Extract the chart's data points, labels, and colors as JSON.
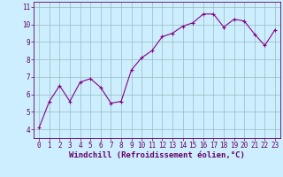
{
  "x": [
    0,
    1,
    2,
    3,
    4,
    5,
    6,
    7,
    8,
    9,
    10,
    11,
    12,
    13,
    14,
    15,
    16,
    17,
    18,
    19,
    20,
    21,
    22,
    23
  ],
  "y": [
    4.1,
    5.6,
    6.5,
    5.6,
    6.7,
    6.9,
    6.4,
    5.5,
    5.6,
    7.4,
    8.1,
    8.5,
    9.3,
    9.5,
    9.9,
    10.1,
    10.6,
    10.6,
    9.85,
    10.3,
    10.2,
    9.45,
    8.8,
    9.7
  ],
  "line_color": "#880088",
  "marker": "+",
  "marker_size": 3,
  "bg_color": "#cceeff",
  "grid_color": "#99bbbb",
  "xlabel": "Windchill (Refroidissement éolien,°C)",
  "xlim": [
    -0.5,
    23.5
  ],
  "ylim": [
    3.5,
    11.3
  ],
  "yticks": [
    4,
    5,
    6,
    7,
    8,
    9,
    10,
    11
  ],
  "xticks": [
    0,
    1,
    2,
    3,
    4,
    5,
    6,
    7,
    8,
    9,
    10,
    11,
    12,
    13,
    14,
    15,
    16,
    17,
    18,
    19,
    20,
    21,
    22,
    23
  ],
  "xtick_labels": [
    "0",
    "1",
    "2",
    "3",
    "4",
    "5",
    "6",
    "7",
    "8",
    "9",
    "10",
    "11",
    "12",
    "13",
    "14",
    "15",
    "16",
    "17",
    "18",
    "19",
    "20",
    "21",
    "22",
    "23"
  ],
  "tick_color": "#660066",
  "label_fontsize": 6.5,
  "tick_fontsize": 5.5,
  "spine_color": "#660066",
  "linewidth": 0.8
}
